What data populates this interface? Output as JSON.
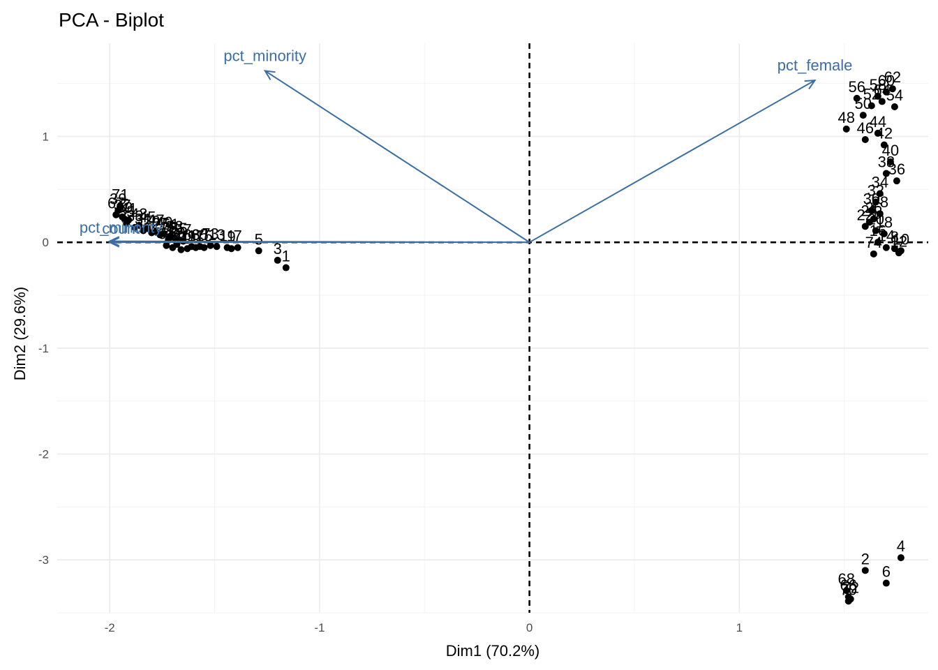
{
  "chart_data": {
    "type": "scatter",
    "title": "PCA - Biplot",
    "xlabel": "Dim1 (70.2%)",
    "ylabel": "Dim2 (29.6%)",
    "xlim": [
      -2.25,
      1.9
    ],
    "ylim": [
      -3.5,
      1.88
    ],
    "x_ticks": [
      -2,
      -1,
      0,
      1
    ],
    "y_ticks": [
      -3,
      -2,
      -1,
      0,
      1
    ],
    "grid": true,
    "zero_lines": true,
    "colors": {
      "points": "#000000",
      "variables": "#3a6ea5",
      "grid": "#ebebeb"
    },
    "variables": [
      {
        "name": "pct_minority",
        "x": -1.26,
        "y": 1.62
      },
      {
        "name": "pct_female",
        "x": 1.36,
        "y": 1.53
      },
      {
        "name": "pct_minority",
        "x": -2.0,
        "y": 0.01
      },
      {
        "name": "count",
        "x": -2.0,
        "y": 0.0
      }
    ],
    "points": [
      {
        "label": "1",
        "x": -1.16,
        "y": -0.24
      },
      {
        "label": "3",
        "x": -1.2,
        "y": -0.17
      },
      {
        "label": "5",
        "x": -1.29,
        "y": -0.08
      },
      {
        "label": "7",
        "x": -1.39,
        "y": -0.05
      },
      {
        "label": "9",
        "x": -1.42,
        "y": -0.06
      },
      {
        "label": "11",
        "x": -1.44,
        "y": -0.05
      },
      {
        "label": "13",
        "x": -1.49,
        "y": -0.04
      },
      {
        "label": "15",
        "x": -1.55,
        "y": -0.05
      },
      {
        "label": "17",
        "x": -1.59,
        "y": -0.05
      },
      {
        "label": "19",
        "x": -1.63,
        "y": -0.06
      },
      {
        "label": "21",
        "x": -1.66,
        "y": -0.07
      },
      {
        "label": "23",
        "x": -1.7,
        "y": -0.05
      },
      {
        "label": "25",
        "x": -1.72,
        "y": 0.03
      },
      {
        "label": "27",
        "x": -1.76,
        "y": 0.07
      },
      {
        "label": "29",
        "x": -1.8,
        "y": 0.09
      },
      {
        "label": "31",
        "x": -1.84,
        "y": 0.11
      },
      {
        "label": "33",
        "x": -1.88,
        "y": 0.14
      },
      {
        "label": "35",
        "x": -1.92,
        "y": 0.18
      },
      {
        "label": "37",
        "x": -1.94,
        "y": 0.24
      },
      {
        "label": "39",
        "x": -1.96,
        "y": 0.3
      },
      {
        "label": "41",
        "x": -1.91,
        "y": 0.21
      },
      {
        "label": "43",
        "x": -1.86,
        "y": 0.16
      },
      {
        "label": "45",
        "x": -1.82,
        "y": 0.13
      },
      {
        "label": "47",
        "x": -1.78,
        "y": 0.1
      },
      {
        "label": "49",
        "x": -1.74,
        "y": 0.08
      },
      {
        "label": "51",
        "x": -1.71,
        "y": 0.06
      },
      {
        "label": "53",
        "x": -1.69,
        "y": 0.04
      },
      {
        "label": "55",
        "x": -1.67,
        "y": 0.02
      },
      {
        "label": "57",
        "x": -1.65,
        "y": 0.01
      },
      {
        "label": "59",
        "x": -1.68,
        "y": -0.02
      },
      {
        "label": "61",
        "x": -1.73,
        "y": -0.03
      },
      {
        "label": "63",
        "x": -1.61,
        "y": -0.04
      },
      {
        "label": "65",
        "x": -1.57,
        "y": -0.04
      },
      {
        "label": "67",
        "x": -1.97,
        "y": 0.26
      },
      {
        "label": "69",
        "x": -1.93,
        "y": 0.22
      },
      {
        "label": "71",
        "x": -1.95,
        "y": 0.34
      },
      {
        "label": "73",
        "x": -1.52,
        "y": -0.03
      },
      {
        "label": "2",
        "x": 1.6,
        "y": -3.1
      },
      {
        "label": "4",
        "x": 1.77,
        "y": -2.98
      },
      {
        "label": "6",
        "x": 1.7,
        "y": -3.22
      },
      {
        "label": "8",
        "x": 1.74,
        "y": -0.06
      },
      {
        "label": "10",
        "x": 1.77,
        "y": -0.08
      },
      {
        "label": "12",
        "x": 1.76,
        "y": -0.1
      },
      {
        "label": "14",
        "x": 1.7,
        "y": -0.05
      },
      {
        "label": "16",
        "x": 1.66,
        "y": 0.0
      },
      {
        "label": "18",
        "x": 1.69,
        "y": 0.08
      },
      {
        "label": "20",
        "x": 1.65,
        "y": 0.11
      },
      {
        "label": "22",
        "x": 1.6,
        "y": 0.15
      },
      {
        "label": "24",
        "x": 1.62,
        "y": 0.19
      },
      {
        "label": "26",
        "x": 1.64,
        "y": 0.22
      },
      {
        "label": "28",
        "x": 1.67,
        "y": 0.27
      },
      {
        "label": "30",
        "x": 1.63,
        "y": 0.3
      },
      {
        "label": "32",
        "x": 1.65,
        "y": 0.38
      },
      {
        "label": "34",
        "x": 1.67,
        "y": 0.46
      },
      {
        "label": "36",
        "x": 1.75,
        "y": 0.58
      },
      {
        "label": "38",
        "x": 1.7,
        "y": 0.65
      },
      {
        "label": "40",
        "x": 1.72,
        "y": 0.76
      },
      {
        "label": "42",
        "x": 1.69,
        "y": 0.92
      },
      {
        "label": "44",
        "x": 1.66,
        "y": 1.03
      },
      {
        "label": "46",
        "x": 1.6,
        "y": 0.97
      },
      {
        "label": "48",
        "x": 1.51,
        "y": 1.07
      },
      {
        "label": "50",
        "x": 1.59,
        "y": 1.2
      },
      {
        "label": "52",
        "x": 1.63,
        "y": 1.29
      },
      {
        "label": "54",
        "x": 1.74,
        "y": 1.28
      },
      {
        "label": "56",
        "x": 1.56,
        "y": 1.36
      },
      {
        "label": "58",
        "x": 1.66,
        "y": 1.38
      },
      {
        "label": "60",
        "x": 1.7,
        "y": 1.42
      },
      {
        "label": "62",
        "x": 1.73,
        "y": 1.45
      },
      {
        "label": "64",
        "x": 1.68,
        "y": 1.33
      },
      {
        "label": "66",
        "x": 1.52,
        "y": -3.35
      },
      {
        "label": "68",
        "x": 1.51,
        "y": -3.29
      },
      {
        "label": "70",
        "x": 1.52,
        "y": -3.39
      },
      {
        "label": "72",
        "x": 1.53,
        "y": -3.37
      },
      {
        "label": "74",
        "x": 1.64,
        "y": -0.11
      }
    ]
  }
}
